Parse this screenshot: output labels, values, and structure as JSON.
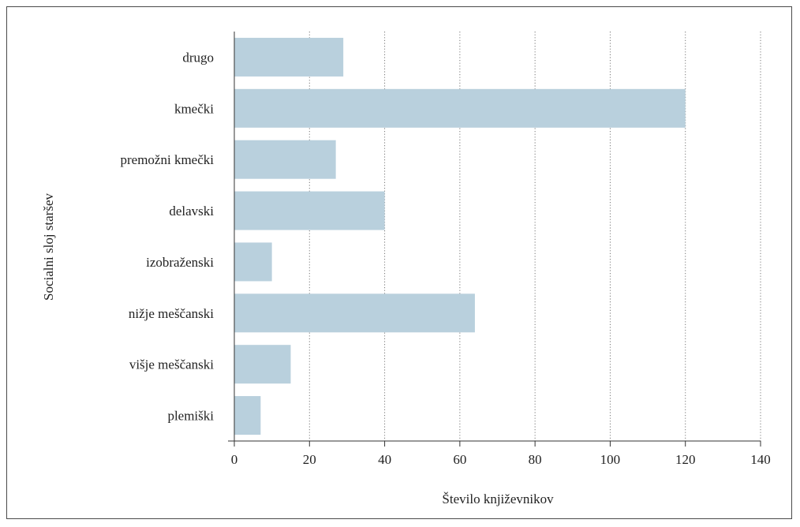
{
  "chart_data": {
    "type": "bar",
    "orientation": "horizontal",
    "categories": [
      "drugo",
      "kmečki",
      "premožni kmečki",
      "delavski",
      "izobraženski",
      "nižje meščanski",
      "višje meščanski",
      "plemiški"
    ],
    "values": [
      29,
      120,
      27,
      40,
      10,
      64,
      15,
      7
    ],
    "xlabel": "Število književnikov",
    "ylabel": "Socialni sloj staršev",
    "xlim": [
      0,
      140
    ],
    "xticks": [
      0,
      20,
      40,
      60,
      80,
      100,
      120,
      140
    ],
    "xtick_labels": [
      "0",
      "20",
      "40",
      "60",
      "80",
      "100",
      "120",
      "140"
    ],
    "grid": "vertical dotted",
    "bar_color": "#b9d0dd"
  }
}
